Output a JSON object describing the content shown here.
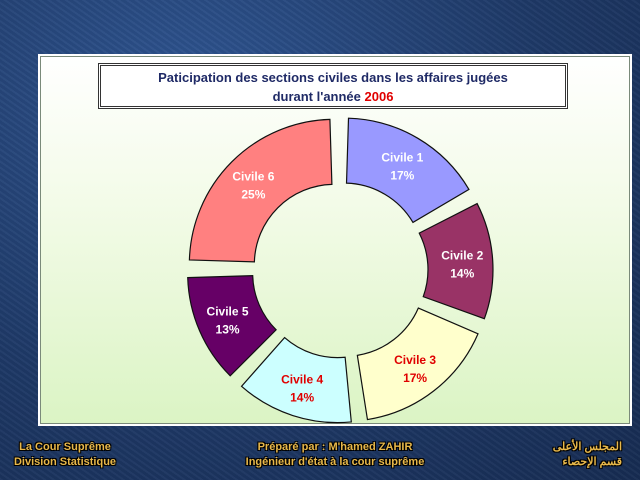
{
  "chart_data": {
    "type": "pie",
    "title": "Paticipation des sections civiles dans les affaires jugées",
    "subtitle_prefix": "durant l'année ",
    "subtitle_year": "2006",
    "slices": [
      {
        "label": "Civile 1",
        "value": 17,
        "value_label": "17%",
        "color": "#9999ff",
        "label_color": "#ffffff"
      },
      {
        "label": "Civile 2",
        "value": 14,
        "value_label": "14%",
        "color": "#993366",
        "label_color": "#ffffff"
      },
      {
        "label": "Civile 3",
        "value": 17,
        "value_label": "17%",
        "color": "#ffffcc",
        "label_color": "#e00000"
      },
      {
        "label": "Civile 4",
        "value": 14,
        "value_label": "14%",
        "color": "#ccffff",
        "label_color": "#e00000"
      },
      {
        "label": "Civile 5",
        "value": 13,
        "value_label": "13%",
        "color": "#660066",
        "label_color": "#ffffff"
      },
      {
        "label": "Civile 6",
        "value": 25,
        "value_label": "25%",
        "color": "#ff8080",
        "label_color": "#ffffff"
      }
    ],
    "start_angle_deg": 0,
    "exploded": true
  },
  "footer": {
    "left_line1": "La Cour Suprême",
    "left_line2": "Division Statistique",
    "center_line1": "Préparé par : M'hamed ZAHIR",
    "center_line2": "Ingénieur d'état à la cour suprême",
    "right_line1": "المجلس الأعلى",
    "right_line2": "قسم الإحصاء"
  }
}
